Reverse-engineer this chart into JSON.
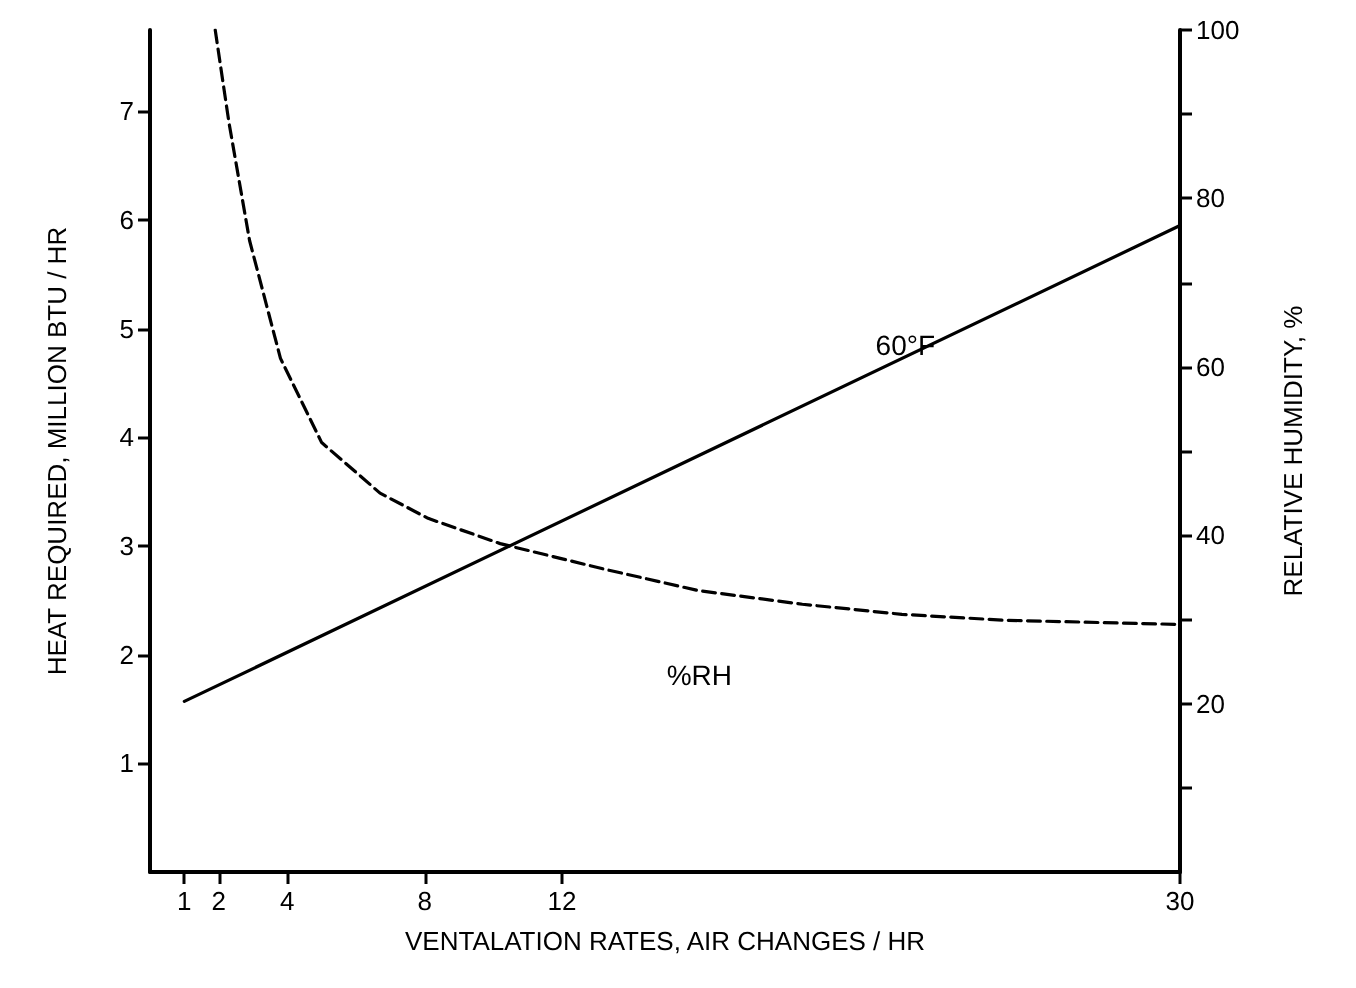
{
  "chart_data": {
    "type": "line",
    "xlabel": "VENTALATION RATES, AIR CHANGES / HR",
    "ylabel": "HEAT REQUIRED, MILLION BTU / HR",
    "y2label": "RELATIVE HUMIDITY, %",
    "xlim": [
      0,
      30
    ],
    "xticks": [
      1,
      2,
      4,
      8,
      12,
      30
    ],
    "ylim": [
      0,
      7.75
    ],
    "yticks": [
      1,
      2,
      3,
      4,
      5,
      6,
      7
    ],
    "y2lim": [
      0,
      100
    ],
    "y2ticks": [
      {
        "value": 10,
        "label": null
      },
      20,
      {
        "value": 30,
        "label": null
      },
      40,
      {
        "value": 50,
        "label": null
      },
      60,
      {
        "value": 70,
        "label": null
      },
      80,
      {
        "value": 90,
        "label": null
      },
      100
    ],
    "grid": false,
    "marker": "none",
    "series": [
      {
        "color": "#000000",
        "line_style": "solid",
        "x": [
          1,
          30
        ],
        "values": [
          1.57,
          5.95
        ]
      },
      {
        "name": "%RH",
        "color": "#000000",
        "line_style": "dashed",
        "axis": "y2",
        "x": [
          1.9,
          2.3,
          2.9,
          3.8,
          5,
          6.7,
          8.1,
          10.2,
          13.2,
          16,
          19,
          21.9,
          24.9,
          30
        ],
        "values": [
          100,
          89,
          75,
          61,
          51,
          45,
          42,
          39,
          36,
          33.4,
          31.8,
          30.6,
          29.9,
          29.4
        ]
      }
    ],
    "annotations": [
      {
        "text": "60°F",
        "x": 22,
        "y": 4.85
      }
    ]
  }
}
